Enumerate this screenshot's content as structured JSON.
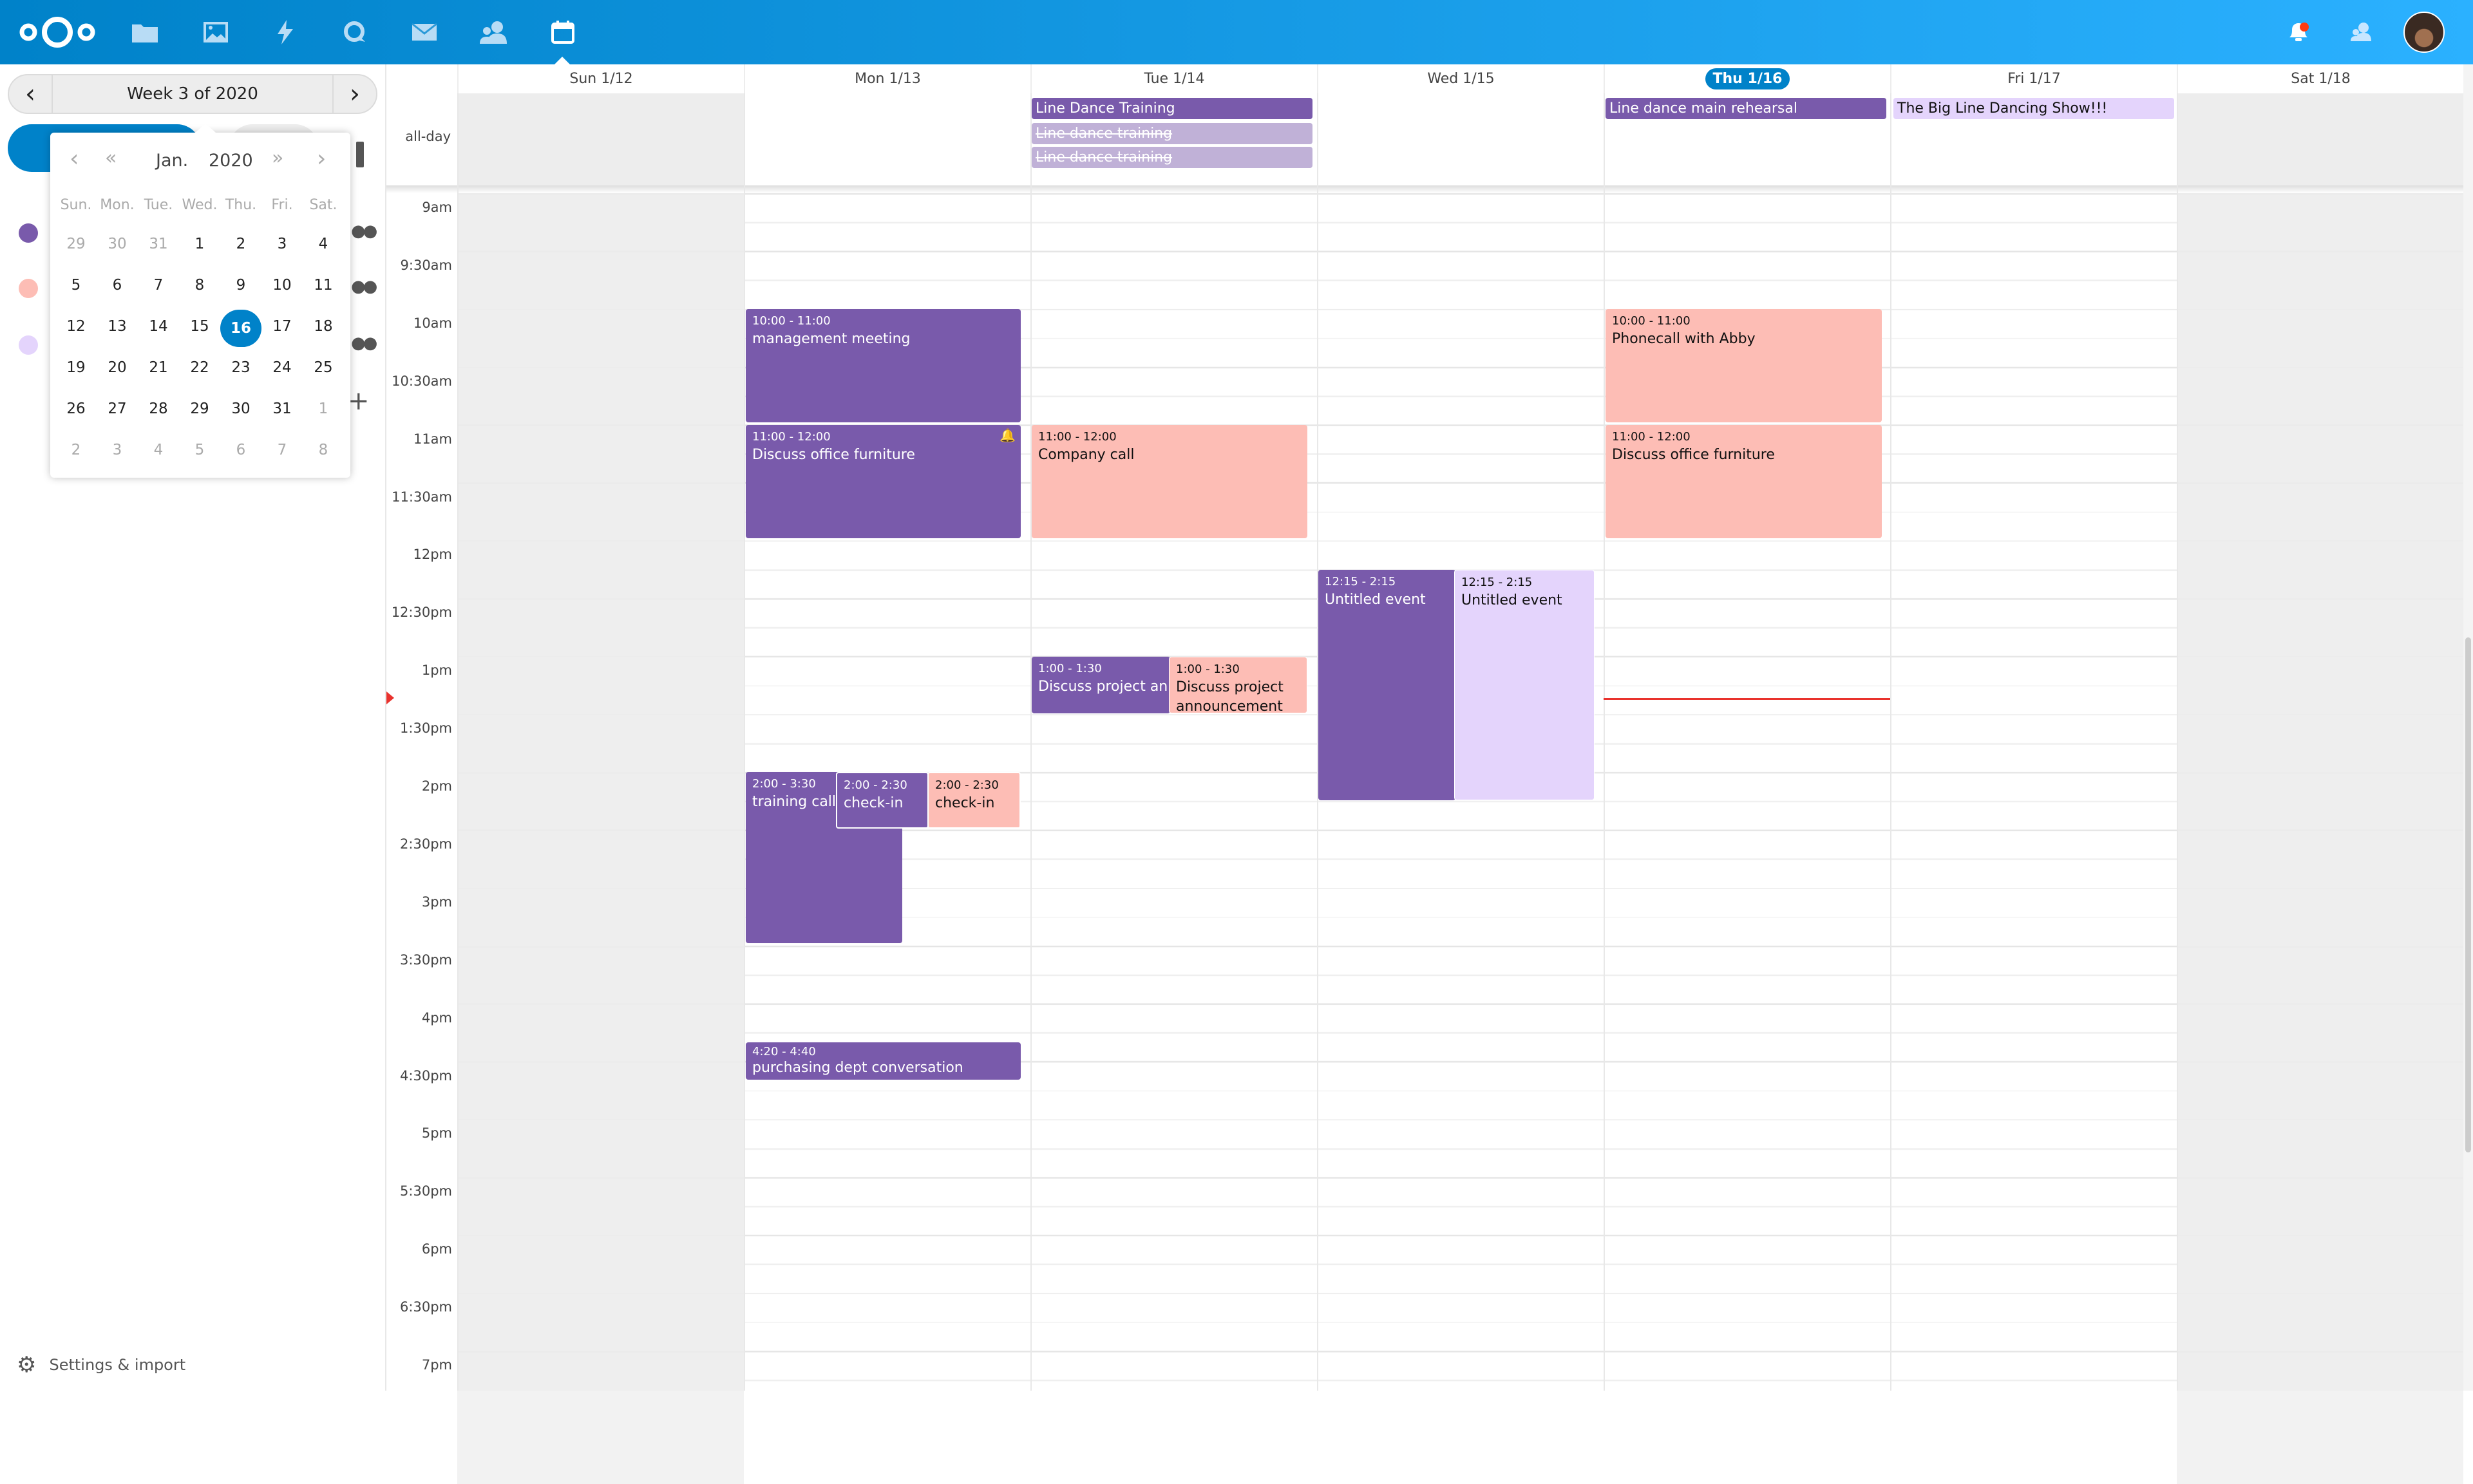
{
  "topbar": {
    "apps": [
      "files-icon",
      "photos-icon",
      "activity-icon",
      "talk-icon",
      "mail-icon",
      "contacts-icon",
      "calendar-icon"
    ],
    "active_app": "calendar",
    "notification_badge_color": "#ff3b12"
  },
  "sidebar": {
    "week_label": "Week 3 of 2020",
    "calendar_colors": [
      "#795aab",
      "#fdbdb5",
      "#e4d4fc"
    ],
    "settings_label": "Settings & import",
    "datepicker": {
      "month": "Jan.",
      "year": "2020",
      "weekdays": [
        "Sun.",
        "Mon.",
        "Tue.",
        "Wed.",
        "Thu.",
        "Fri.",
        "Sat."
      ],
      "weeks": [
        [
          "29",
          "30",
          "31",
          "1",
          "2",
          "3",
          "4"
        ],
        [
          "5",
          "6",
          "7",
          "8",
          "9",
          "10",
          "11"
        ],
        [
          "12",
          "13",
          "14",
          "15",
          "16",
          "17",
          "18"
        ],
        [
          "19",
          "20",
          "21",
          "22",
          "23",
          "24",
          "25"
        ],
        [
          "26",
          "27",
          "28",
          "29",
          "30",
          "31",
          "1"
        ],
        [
          "2",
          "3",
          "4",
          "5",
          "6",
          "7",
          "8"
        ]
      ],
      "selected": "16"
    }
  },
  "calendar": {
    "days": [
      "Sun 1/12",
      "Mon 1/13",
      "Tue 1/14",
      "Wed 1/15",
      "Thu 1/16",
      "Fri 1/17",
      "Sat 1/18"
    ],
    "today_index": 4,
    "allday_label": "all-day",
    "times": [
      "9am",
      "9:30am",
      "10am",
      "10:30am",
      "11am",
      "11:30am",
      "12pm",
      "12:30pm",
      "1pm",
      "1:30pm",
      "2pm",
      "2:30pm",
      "3pm",
      "3:30pm",
      "4pm",
      "4:30pm",
      "5pm",
      "5:30pm",
      "6pm",
      "6:30pm",
      "7pm"
    ],
    "allday_events": [
      {
        "day": "Tue 1/14",
        "title": "Line Dance Training",
        "status": "confirmed"
      },
      {
        "day": "Tue 1/14",
        "title": "Line dance training",
        "status": "cancelled"
      },
      {
        "day": "Tue 1/14",
        "title": "Line dance training",
        "status": "cancelled"
      },
      {
        "day": "Thu 1/16",
        "title": "Line dance main rehearsal",
        "status": "confirmed"
      },
      {
        "day": "Fri 1/17",
        "title": "The Big Line Dancing Show!!!",
        "status": "confirmed"
      }
    ],
    "events": [
      {
        "day": "Mon 1/13",
        "time": "10:00 - 11:00",
        "title": "management meeting"
      },
      {
        "day": "Mon 1/13",
        "time": "11:00 - 12:00",
        "title": "Discuss office furniture",
        "alarm": true
      },
      {
        "day": "Mon 1/13",
        "time": "2:00 - 3:30",
        "title": "training call"
      },
      {
        "day": "Mon 1/13",
        "time": "2:00 - 2:30",
        "title": "check-in"
      },
      {
        "day": "Mon 1/13",
        "time": "2:00 - 2:30",
        "title": "check-in"
      },
      {
        "day": "Mon 1/13",
        "time": "4:20 - 4:40",
        "title": "purchasing dept conversation"
      },
      {
        "day": "Tue 1/14",
        "time": "11:00 - 12:00",
        "title": "Company call"
      },
      {
        "day": "Tue 1/14",
        "time": "1:00 - 1:30",
        "title": "Discuss project announcement"
      },
      {
        "day": "Tue 1/14",
        "time": "1:00 - 1:30",
        "title": "Discuss project announcement"
      },
      {
        "day": "Wed 1/15",
        "time": "12:15 - 2:15",
        "title": "Untitled event"
      },
      {
        "day": "Wed 1/15",
        "time": "12:15 - 2:15",
        "title": "Untitled event"
      },
      {
        "day": "Thu 1/16",
        "time": "10:00 - 11:00",
        "title": "Phonecall with Abby"
      },
      {
        "day": "Thu 1/16",
        "time": "11:00 - 12:00",
        "title": "Discuss office furniture"
      }
    ],
    "now_indicator_color": "#e9322d"
  }
}
